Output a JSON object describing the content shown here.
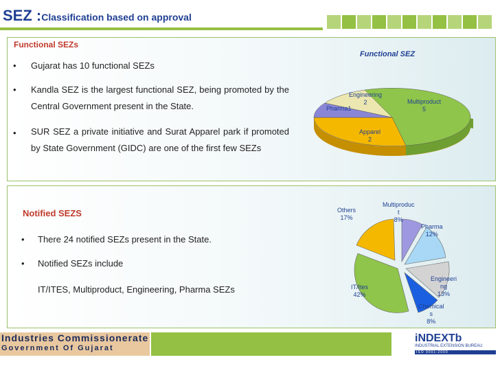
{
  "header": {
    "title_main": "SEZ :",
    "title_sub": "Classification based on approval"
  },
  "functional": {
    "heading": "Functional SEZs",
    "bullet": "•",
    "points": [
      "Gujarat has 10 functional SEZs",
      "Kandla SEZ is the largest functional SEZ, being promoted by the Central Government present in the State.",
      "SUR SEZ a private initiative and Surat Apparel park if promoted by State Government (GIDC) are one of the first few SEZs"
    ]
  },
  "notified": {
    "heading": "Notified SEZS",
    "bullet": "•",
    "points": [
      "There 24 notified SEZs present in the State.",
      "Notified SEZs include"
    ],
    "sub_text": "IT/ITES, Multiproduct, Engineering, Pharma SEZs"
  },
  "chart_data": [
    {
      "type": "pie",
      "title": "Functional SEZ",
      "style": "3d",
      "slices": [
        {
          "label": "Multiproduct",
          "value": 5,
          "color": "#8fc54a"
        },
        {
          "label": "Apparel",
          "value": 2,
          "color": "#f5b800"
        },
        {
          "label": "Pharma",
          "value": 1,
          "color": "#8a86d6"
        },
        {
          "label": "Engineering",
          "value": 2,
          "color": "#ece7b0"
        }
      ],
      "labels": {
        "multiproduct": [
          "Multiproduct",
          "5"
        ],
        "apparel": [
          "Apparel",
          "2"
        ],
        "pharma": [
          "Pharma1"
        ],
        "engineering": [
          "Engineering",
          "2"
        ]
      }
    },
    {
      "type": "pie",
      "title": "",
      "style": "exploded",
      "slices": [
        {
          "label": "Multiproduct",
          "value": 8,
          "color": "#9e98e0"
        },
        {
          "label": "Pharma",
          "value": 12,
          "color": "#a8d8f5"
        },
        {
          "label": "Engineering",
          "value": 13,
          "color": "#d3d3d3"
        },
        {
          "label": "Chemicals",
          "value": 8,
          "color": "#1a5fe0"
        },
        {
          "label": "IT/Ites",
          "value": 42,
          "color": "#8fc54a"
        },
        {
          "label": "Others",
          "value": 17,
          "color": "#f5b800"
        }
      ],
      "labels": {
        "multiproduct": [
          "Multiproduc",
          "t",
          "8%"
        ],
        "pharma": [
          "Pharma",
          "12%"
        ],
        "engineering": [
          "Engineeri",
          "ng",
          "13%"
        ],
        "chemicals": [
          "Chemical",
          "s",
          "8%"
        ],
        "itites": [
          "IT/Ites",
          "42%"
        ],
        "others": [
          "Others",
          "17%"
        ]
      }
    }
  ],
  "footer": {
    "org_line1": "Industries Commissionerate",
    "org_line2": "Government Of Gujarat",
    "brand": "iNDEXTb",
    "brand_sub": "INDUSTRIAL EXTENSION BUREAU",
    "brand_bar": "ISO 9001:2000"
  }
}
